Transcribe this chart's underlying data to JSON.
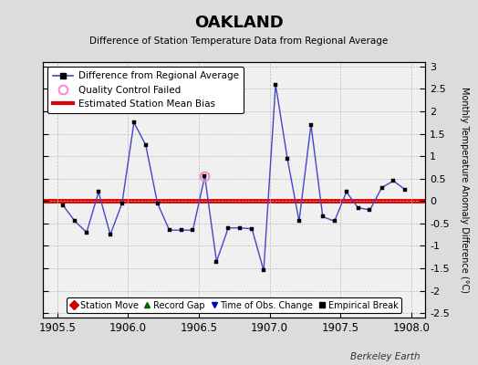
{
  "title": "OAKLAND",
  "subtitle": "Difference of Station Temperature Data from Regional Average",
  "ylabel_right": "Monthly Temperature Anomaly Difference (°C)",
  "xlim": [
    1905.4,
    1908.1
  ],
  "ylim": [
    -2.6,
    3.1
  ],
  "yticks": [
    -2.5,
    -2,
    -1.5,
    -1,
    -0.5,
    0,
    0.5,
    1,
    1.5,
    2,
    2.5,
    3
  ],
  "xticks": [
    1905.5,
    1906,
    1906.5,
    1907,
    1907.5,
    1908
  ],
  "bias_value": 0.0,
  "background_color": "#dcdcdc",
  "plot_bg_color": "#f0f0f0",
  "line_color": "#4444cc",
  "bias_color": "#dd0000",
  "watermark": "Berkeley Earth",
  "data_x": [
    1905.542,
    1905.625,
    1905.708,
    1905.792,
    1905.875,
    1905.958,
    1906.042,
    1906.125,
    1906.208,
    1906.292,
    1906.375,
    1906.458,
    1906.542,
    1906.625,
    1906.708,
    1906.792,
    1906.875,
    1906.958,
    1907.042,
    1907.125,
    1907.208,
    1907.292,
    1907.375,
    1907.458,
    1907.542,
    1907.625,
    1907.708,
    1907.792,
    1907.875,
    1907.958
  ],
  "data_y": [
    -0.1,
    -0.45,
    -0.7,
    0.2,
    -0.75,
    -0.05,
    1.75,
    1.25,
    -0.05,
    -0.65,
    -0.65,
    -0.65,
    0.55,
    -1.35,
    -0.6,
    -0.6,
    -0.62,
    -1.55,
    2.6,
    0.95,
    -0.45,
    1.7,
    -0.35,
    -0.45,
    0.2,
    -0.15,
    -0.2,
    0.3,
    0.45,
    0.25
  ],
  "qc_fail_x": [
    1906.542
  ],
  "qc_fail_y": [
    0.55
  ]
}
